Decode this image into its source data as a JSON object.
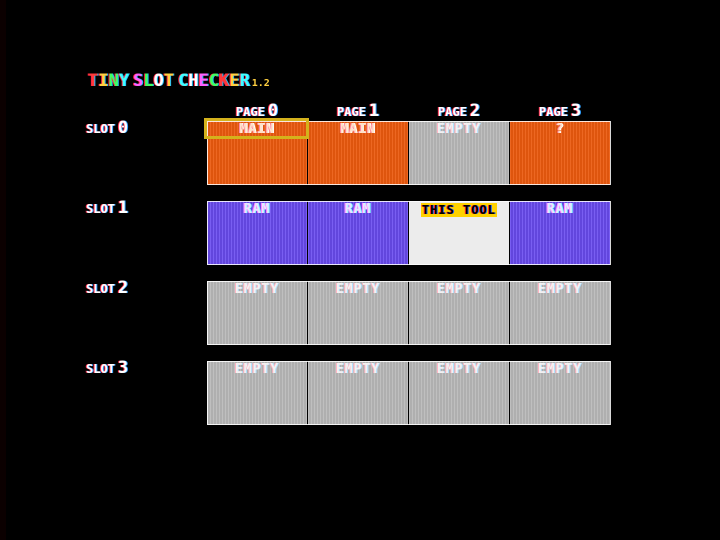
{
  "app": {
    "title_chars": [
      "T",
      "I",
      "N",
      "Y",
      " ",
      "S",
      "L",
      "O",
      "T",
      " ",
      "C",
      "H",
      "E",
      "C",
      "K",
      "E",
      "R"
    ],
    "title_colors": [
      "#ff3a3a",
      "#ffd040",
      "#40ff60",
      "#40ffff",
      "#000000",
      "#ff60ff",
      "#40ff60",
      "#ffffff",
      "#ffd040",
      "#000000",
      "#40ffff",
      "#ffffff",
      "#ff60ff",
      "#40ff60",
      "#ff3a3a",
      "#ffd040",
      "#40ffff"
    ],
    "version": "1.2"
  },
  "pages": [
    {
      "label": "PAGE",
      "num": "0"
    },
    {
      "label": "PAGE",
      "num": "1"
    },
    {
      "label": "PAGE",
      "num": "2"
    },
    {
      "label": "PAGE",
      "num": "3"
    }
  ],
  "slots": [
    {
      "label": "SLOT",
      "num": "0",
      "cells": [
        {
          "type": "main",
          "text": "MAIN"
        },
        {
          "type": "main",
          "text": "MAIN"
        },
        {
          "type": "empty",
          "text": "EMPTY"
        },
        {
          "type": "unknown",
          "text": "?"
        }
      ]
    },
    {
      "label": "SLOT",
      "num": "1",
      "cells": [
        {
          "type": "ram",
          "text": "RAM"
        },
        {
          "type": "ram",
          "text": "RAM"
        },
        {
          "type": "tool",
          "text": "THIS TOOL"
        },
        {
          "type": "ram",
          "text": "RAM"
        }
      ]
    },
    {
      "label": "SLOT",
      "num": "2",
      "cells": [
        {
          "type": "empty",
          "text": "EMPTY"
        },
        {
          "type": "empty",
          "text": "EMPTY"
        },
        {
          "type": "empty",
          "text": "EMPTY"
        },
        {
          "type": "empty",
          "text": "EMPTY"
        }
      ]
    },
    {
      "label": "SLOT",
      "num": "3",
      "cells": [
        {
          "type": "empty",
          "text": "EMPTY"
        },
        {
          "type": "empty",
          "text": "EMPTY"
        },
        {
          "type": "empty",
          "text": "EMPTY"
        },
        {
          "type": "empty",
          "text": "EMPTY"
        }
      ]
    }
  ],
  "colors": {
    "main": "#ec5a0f",
    "ram": "#6a4cf0",
    "empty": "#b8b8b8",
    "tool": "#ececec",
    "cursor": "#d4b21c"
  },
  "selection": {
    "slot": 0,
    "page": 0
  },
  "tool_letter_colors": [
    "#000000",
    "#000000",
    "#000000",
    "#000000",
    "#000000",
    "#000000",
    "#000000",
    "#000000",
    "#000000"
  ]
}
